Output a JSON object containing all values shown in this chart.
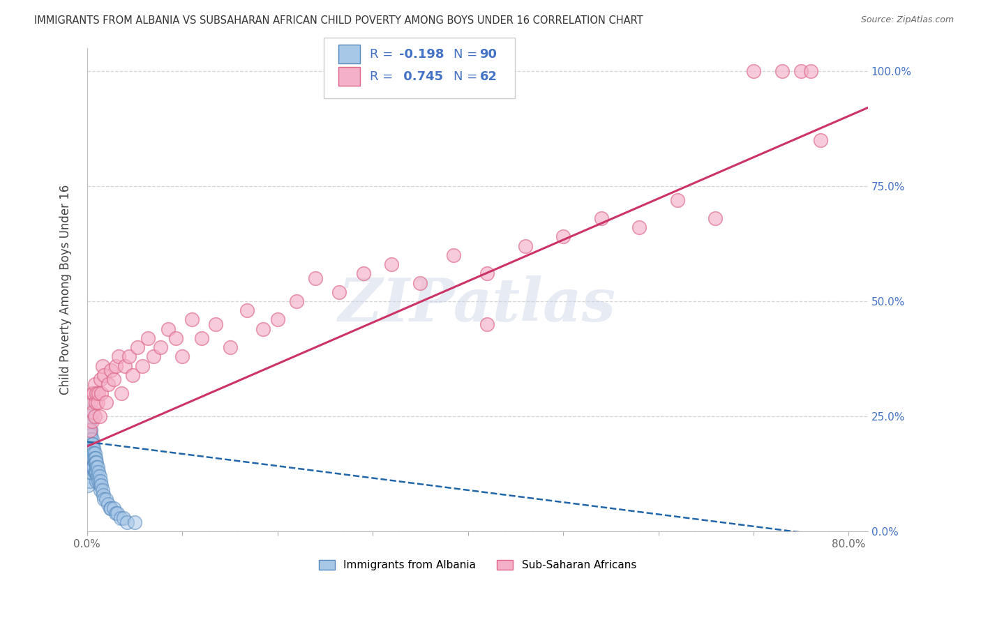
{
  "title": "IMMIGRANTS FROM ALBANIA VS SUBSAHARAN AFRICAN CHILD POVERTY AMONG BOYS UNDER 16 CORRELATION CHART",
  "source": "Source: ZipAtlas.com",
  "ylabel": "Child Poverty Among Boys Under 16",
  "xlim": [
    0.0,
    0.82
  ],
  "ylim": [
    0.0,
    1.05
  ],
  "xticks": [
    0.0,
    0.1,
    0.2,
    0.3,
    0.4,
    0.5,
    0.6,
    0.7,
    0.8
  ],
  "yticks": [
    0.0,
    0.25,
    0.5,
    0.75,
    1.0
  ],
  "yticklabels_right": [
    "0.0%",
    "25.0%",
    "50.0%",
    "75.0%",
    "100.0%"
  ],
  "legend1_label": "Immigrants from Albania",
  "legend2_label": "Sub-Saharan Africans",
  "albania_R": -0.198,
  "albania_N": 90,
  "subsaharan_R": 0.745,
  "subsaharan_N": 62,
  "blue_color": "#a8c8e8",
  "pink_color": "#f4b0c8",
  "blue_edge_color": "#5588bb",
  "pink_edge_color": "#dd6688",
  "blue_line_color": "#2266aa",
  "pink_line_color": "#cc3366",
  "legend_text_color": "#4472c4",
  "watermark": "ZIPatlas",
  "background_color": "#ffffff",
  "grid_color": "#cccccc",
  "albania_x": [
    0.001,
    0.001,
    0.001,
    0.001,
    0.001,
    0.001,
    0.001,
    0.001,
    0.001,
    0.001,
    0.001,
    0.001,
    0.002,
    0.002,
    0.002,
    0.002,
    0.002,
    0.002,
    0.002,
    0.002,
    0.002,
    0.002,
    0.003,
    0.003,
    0.003,
    0.003,
    0.003,
    0.003,
    0.003,
    0.003,
    0.003,
    0.003,
    0.003,
    0.004,
    0.004,
    0.004,
    0.004,
    0.004,
    0.004,
    0.004,
    0.004,
    0.005,
    0.005,
    0.005,
    0.005,
    0.005,
    0.005,
    0.006,
    0.006,
    0.006,
    0.006,
    0.006,
    0.007,
    0.007,
    0.007,
    0.007,
    0.008,
    0.008,
    0.008,
    0.008,
    0.009,
    0.009,
    0.009,
    0.01,
    0.01,
    0.01,
    0.01,
    0.011,
    0.011,
    0.012,
    0.012,
    0.013,
    0.013,
    0.014,
    0.014,
    0.015,
    0.016,
    0.017,
    0.018,
    0.02,
    0.022,
    0.024,
    0.025,
    0.028,
    0.03,
    0.032,
    0.035,
    0.038,
    0.042,
    0.05
  ],
  "albania_y": [
    0.28,
    0.25,
    0.23,
    0.21,
    0.2,
    0.18,
    0.17,
    0.16,
    0.15,
    0.14,
    0.12,
    0.1,
    0.26,
    0.24,
    0.22,
    0.21,
    0.2,
    0.19,
    0.17,
    0.16,
    0.15,
    0.13,
    0.24,
    0.22,
    0.21,
    0.2,
    0.19,
    0.18,
    0.17,
    0.15,
    0.14,
    0.13,
    0.11,
    0.22,
    0.21,
    0.2,
    0.18,
    0.17,
    0.16,
    0.14,
    0.13,
    0.2,
    0.19,
    0.18,
    0.17,
    0.16,
    0.14,
    0.19,
    0.18,
    0.17,
    0.16,
    0.14,
    0.18,
    0.17,
    0.16,
    0.14,
    0.17,
    0.16,
    0.15,
    0.13,
    0.16,
    0.15,
    0.13,
    0.15,
    0.14,
    0.13,
    0.11,
    0.14,
    0.12,
    0.13,
    0.11,
    0.12,
    0.1,
    0.11,
    0.09,
    0.1,
    0.09,
    0.08,
    0.07,
    0.07,
    0.06,
    0.05,
    0.05,
    0.05,
    0.04,
    0.04,
    0.03,
    0.03,
    0.02,
    0.02
  ],
  "subsaharan_x": [
    0.003,
    0.004,
    0.005,
    0.005,
    0.006,
    0.007,
    0.008,
    0.008,
    0.009,
    0.01,
    0.011,
    0.012,
    0.013,
    0.014,
    0.015,
    0.016,
    0.018,
    0.02,
    0.022,
    0.025,
    0.028,
    0.03,
    0.033,
    0.036,
    0.04,
    0.044,
    0.048,
    0.053,
    0.058,
    0.064,
    0.07,
    0.077,
    0.085,
    0.093,
    0.1,
    0.11,
    0.12,
    0.135,
    0.15,
    0.168,
    0.185,
    0.2,
    0.22,
    0.24,
    0.265,
    0.29,
    0.32,
    0.35,
    0.385,
    0.42,
    0.46,
    0.5,
    0.54,
    0.58,
    0.62,
    0.66,
    0.7,
    0.73,
    0.75,
    0.76,
    0.77,
    0.42
  ],
  "subsaharan_y": [
    0.22,
    0.28,
    0.24,
    0.3,
    0.26,
    0.3,
    0.25,
    0.32,
    0.28,
    0.3,
    0.28,
    0.3,
    0.25,
    0.33,
    0.3,
    0.36,
    0.34,
    0.28,
    0.32,
    0.35,
    0.33,
    0.36,
    0.38,
    0.3,
    0.36,
    0.38,
    0.34,
    0.4,
    0.36,
    0.42,
    0.38,
    0.4,
    0.44,
    0.42,
    0.38,
    0.46,
    0.42,
    0.45,
    0.4,
    0.48,
    0.44,
    0.46,
    0.5,
    0.55,
    0.52,
    0.56,
    0.58,
    0.54,
    0.6,
    0.56,
    0.62,
    0.64,
    0.68,
    0.66,
    0.72,
    0.68,
    1.0,
    1.0,
    1.0,
    1.0,
    0.85,
    0.45
  ],
  "pink_trendline_x": [
    0.0,
    0.82
  ],
  "pink_trendline_y": [
    0.185,
    0.92
  ],
  "blue_trendline_x": [
    0.0,
    0.82
  ],
  "blue_trendline_y": [
    0.195,
    -0.02
  ]
}
